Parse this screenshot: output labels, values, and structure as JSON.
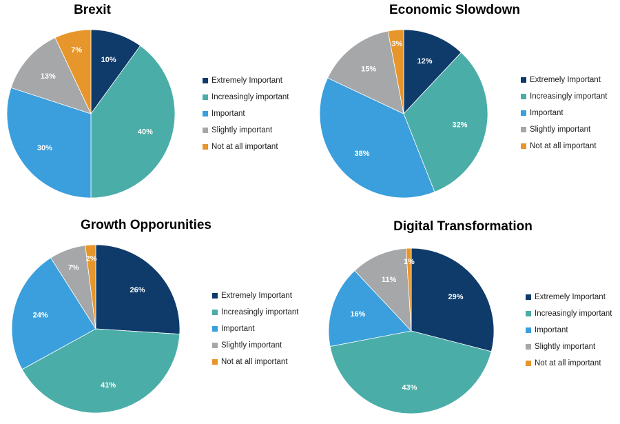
{
  "legend_labels": [
    "Extremely Important",
    "Increasingly important",
    "Important",
    "Slightly important",
    "Not at all important"
  ],
  "colors": [
    "#0f3b6b",
    "#4bada8",
    "#3a9fdc",
    "#a6a7a9",
    "#e7962b"
  ],
  "chart_data": [
    {
      "type": "pie",
      "title": "Brexit",
      "categories": [
        "Extremely Important",
        "Increasingly important",
        "Important",
        "Slightly important",
        "Not at all important"
      ],
      "values": [
        10,
        40,
        30,
        13,
        7
      ],
      "labels": [
        "10%",
        "40%",
        "30%",
        "13%",
        "7%"
      ],
      "legend": "right"
    },
    {
      "type": "pie",
      "title": "Economic Slowdown",
      "categories": [
        "Extremely Important",
        "Increasingly important",
        "Important",
        "Slightly important",
        "Not at all important"
      ],
      "values": [
        12,
        32,
        38,
        15,
        3
      ],
      "labels": [
        "12%",
        "32%",
        "38%",
        "15%",
        "3%"
      ],
      "legend": "right"
    },
    {
      "type": "pie",
      "title": "Growth Opporunities",
      "categories": [
        "Extremely Important",
        "Increasingly important",
        "Important",
        "Slightly important",
        "Not at all important"
      ],
      "values": [
        26,
        41,
        24,
        7,
        2
      ],
      "labels": [
        "26%",
        "41%",
        "24%",
        "7%",
        "2%"
      ],
      "legend": "right"
    },
    {
      "type": "pie",
      "title": "Digital Transformation",
      "categories": [
        "Extremely Important",
        "Increasingly important",
        "Important",
        "Slightly important",
        "Not at all important"
      ],
      "values": [
        29,
        43,
        16,
        11,
        1
      ],
      "labels": [
        "29%",
        "43%",
        "16%",
        "11%",
        "1%"
      ],
      "legend": "right"
    }
  ]
}
